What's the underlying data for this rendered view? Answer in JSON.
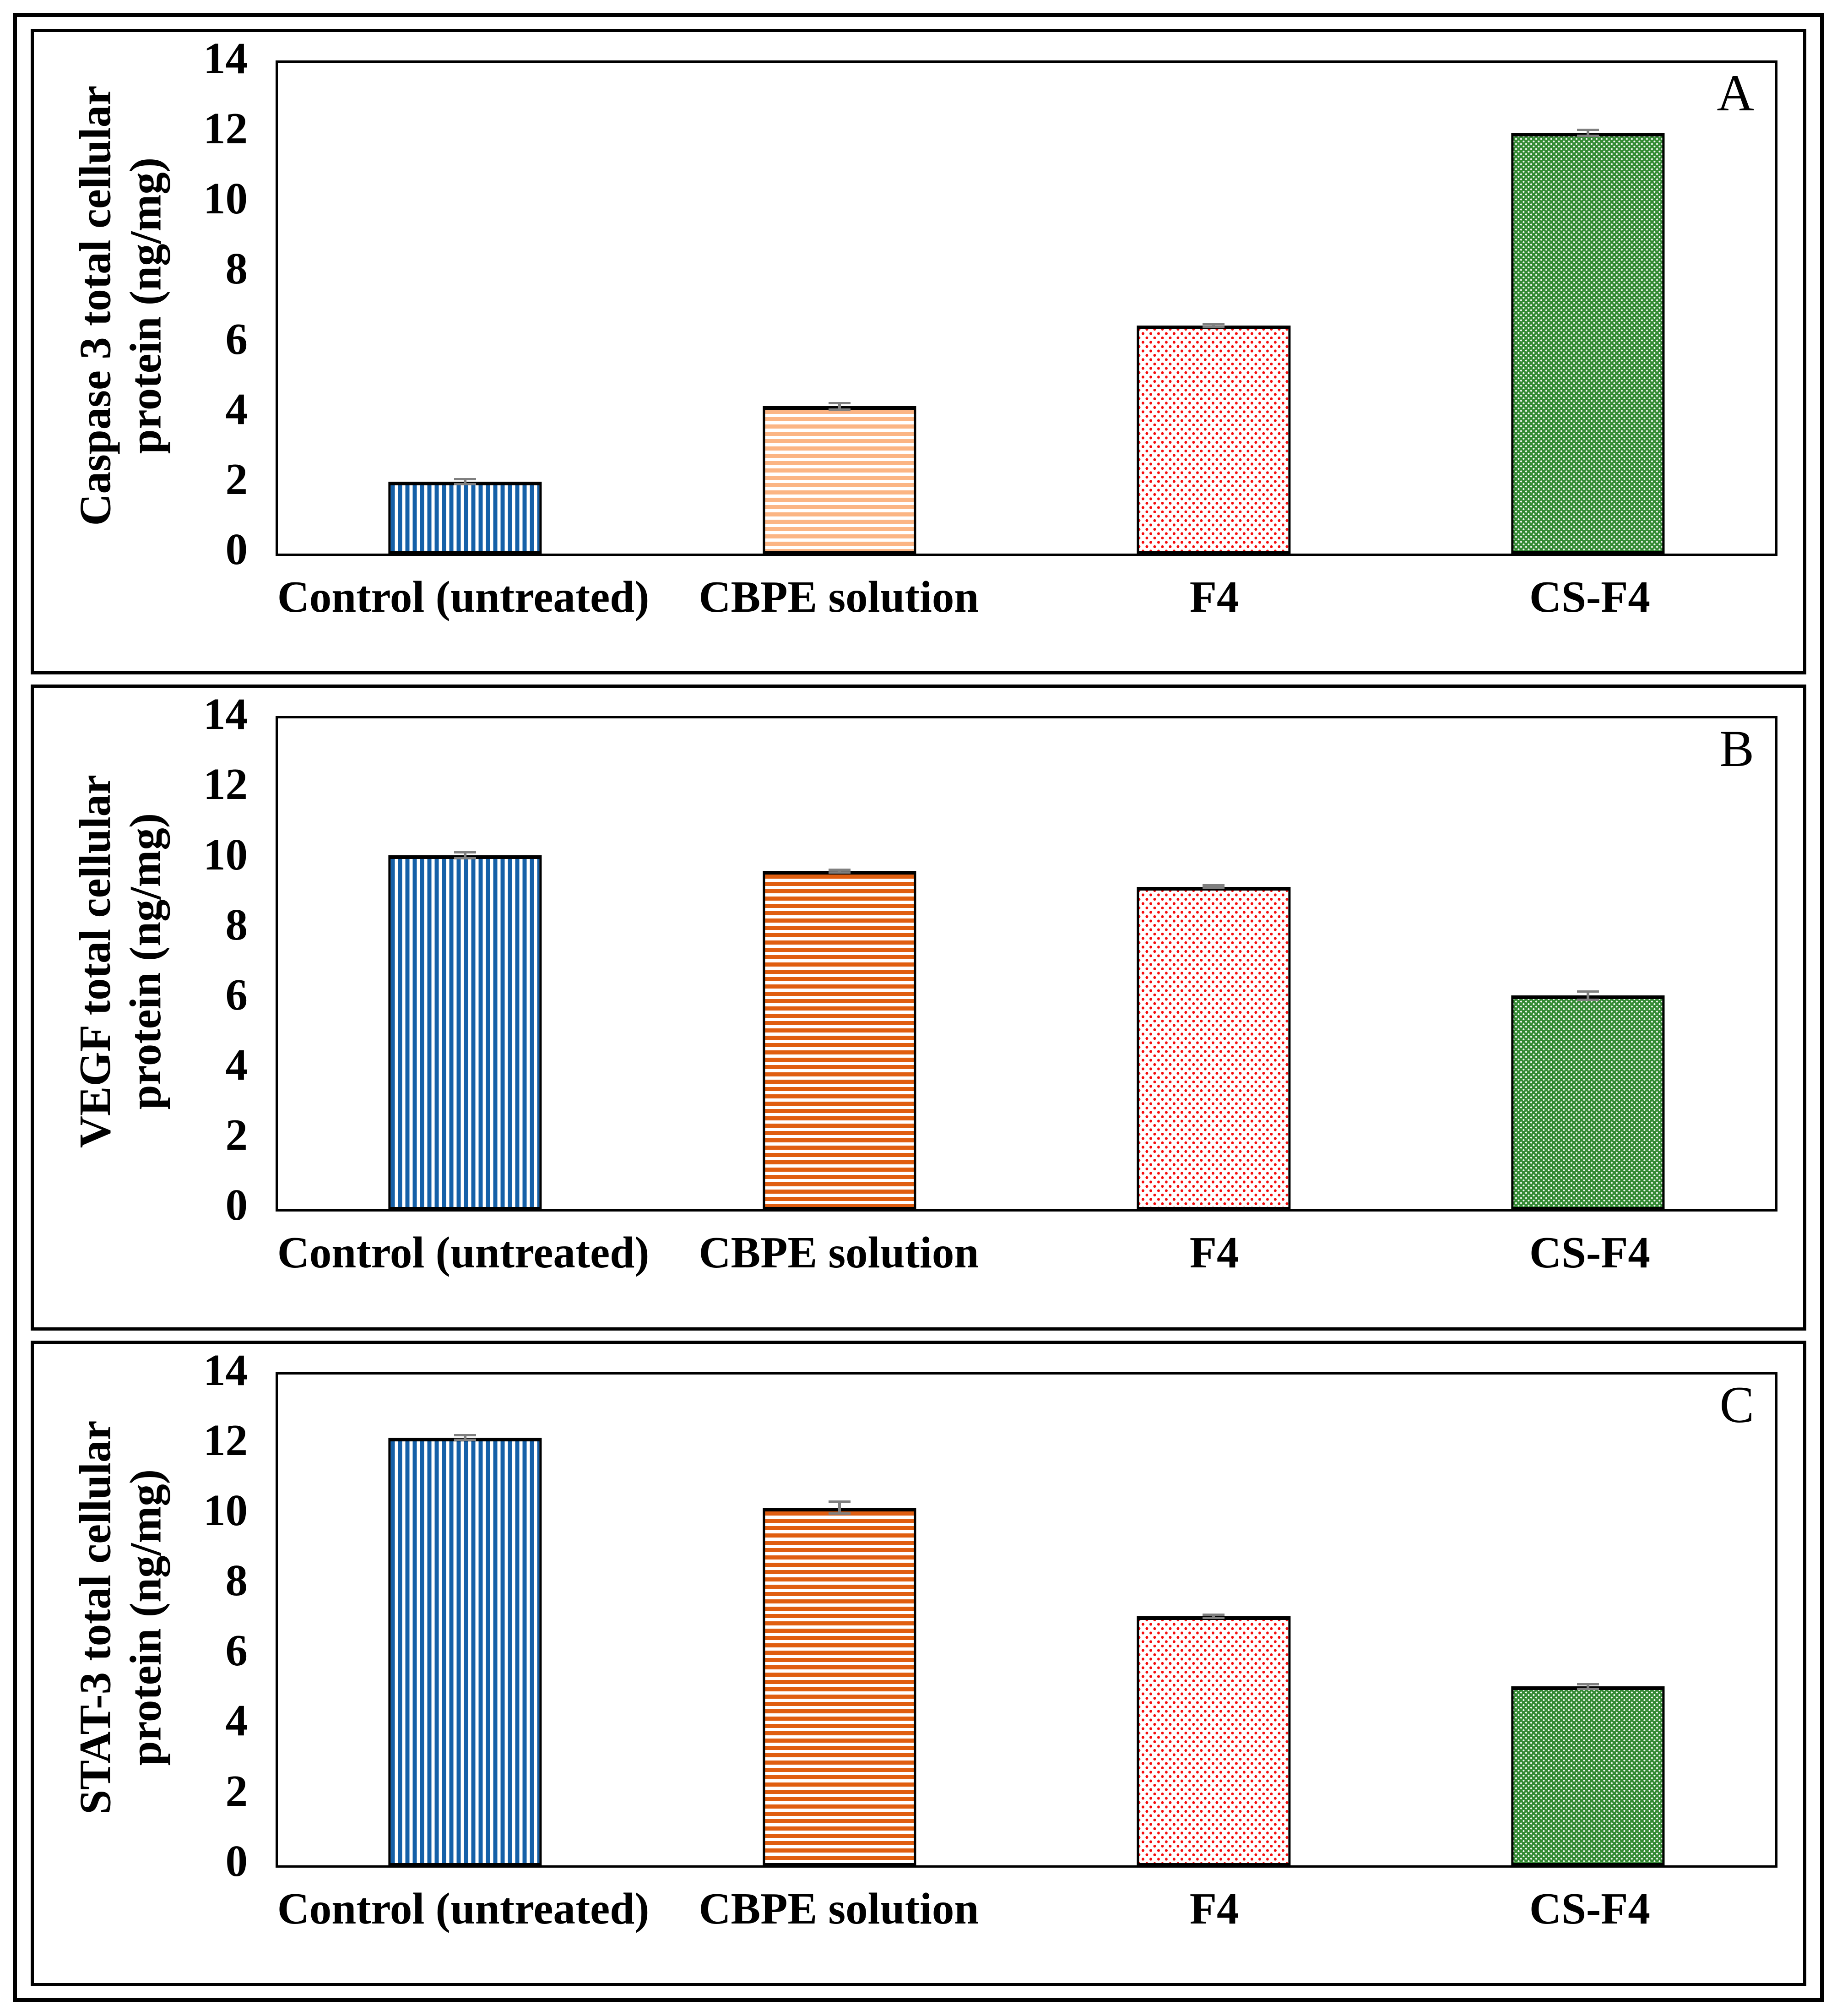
{
  "figure": {
    "background": "#ffffff",
    "frame_color": "#000000",
    "error_bar_color": "#7f7f7f",
    "axis_color": "#000000"
  },
  "chart_data": [
    {
      "type": "bar",
      "panel_label": "A",
      "title": "",
      "ylabel": "Caspase 3 total cellular protein (ng/mg)",
      "ylabel_lines": [
        "Caspase 3 total cellular",
        "protein (ng/mg)"
      ],
      "xlabel": "",
      "ylim": [
        0,
        14
      ],
      "yticks": [
        0,
        2,
        4,
        6,
        8,
        10,
        12,
        14
      ],
      "grid": false,
      "legend": false,
      "categories": [
        "Control (untreated)",
        "CBPE solution",
        "F4",
        "CS-F4"
      ],
      "values": [
        2.05,
        4.2,
        6.5,
        12.0
      ],
      "errors": [
        0.1,
        0.12,
        0.08,
        0.12
      ],
      "bars": [
        {
          "category": "Control (untreated)",
          "value": 2.05,
          "error": 0.1,
          "pattern": "vertical-stripes",
          "color": "#1560a8"
        },
        {
          "category": "CBPE solution",
          "value": 4.2,
          "error": 0.12,
          "pattern": "horizontal-stripes",
          "color": "#fbb584"
        },
        {
          "category": "F4",
          "value": 6.5,
          "error": 0.08,
          "pattern": "dots",
          "color": "#f60d0d"
        },
        {
          "category": "CS-F4",
          "value": 12.0,
          "error": 0.12,
          "pattern": "weave",
          "color": "#348a34"
        }
      ]
    },
    {
      "type": "bar",
      "panel_label": "B",
      "title": "",
      "ylabel": "VEGF total cellular protein (ng/mg)",
      "ylabel_lines": [
        "VEGF total cellular",
        "protein (ng/mg)"
      ],
      "xlabel": "",
      "ylim": [
        0,
        14
      ],
      "yticks": [
        0,
        2,
        4,
        6,
        8,
        10,
        12,
        14
      ],
      "grid": false,
      "legend": false,
      "categories": [
        "Control (untreated)",
        "CBPE solution",
        "F4",
        "CS-F4"
      ],
      "values": [
        10.1,
        9.65,
        9.2,
        6.1
      ],
      "errors": [
        0.12,
        0.07,
        0.06,
        0.15
      ],
      "bars": [
        {
          "category": "Control (untreated)",
          "value": 10.1,
          "error": 0.12,
          "pattern": "vertical-stripes",
          "color": "#1560a8"
        },
        {
          "category": "CBPE solution",
          "value": 9.65,
          "error": 0.07,
          "pattern": "horizontal-stripes",
          "color": "#e05e10"
        },
        {
          "category": "F4",
          "value": 9.2,
          "error": 0.06,
          "pattern": "dots",
          "color": "#f60d0d"
        },
        {
          "category": "CS-F4",
          "value": 6.1,
          "error": 0.15,
          "pattern": "weave",
          "color": "#348a34"
        }
      ]
    },
    {
      "type": "bar",
      "panel_label": "C",
      "title": "",
      "ylabel": "STAT-3 total cellular protein (ng/mg)",
      "ylabel_lines": [
        "STAT-3 total cellular",
        "protein (ng/mg)"
      ],
      "xlabel": "",
      "ylim": [
        0,
        14
      ],
      "yticks": [
        0,
        2,
        4,
        6,
        8,
        10,
        12,
        14
      ],
      "grid": false,
      "legend": false,
      "categories": [
        "Control (untreated)",
        "CBPE solution",
        "F4",
        "CS-F4"
      ],
      "values": [
        12.2,
        10.2,
        7.1,
        5.1
      ],
      "errors": [
        0.1,
        0.2,
        0.08,
        0.1
      ],
      "bars": [
        {
          "category": "Control (untreated)",
          "value": 12.2,
          "error": 0.1,
          "pattern": "vertical-stripes",
          "color": "#1560a8"
        },
        {
          "category": "CBPE solution",
          "value": 10.2,
          "error": 0.2,
          "pattern": "horizontal-stripes",
          "color": "#e05e10"
        },
        {
          "category": "F4",
          "value": 7.1,
          "error": 0.08,
          "pattern": "dots",
          "color": "#f60d0d"
        },
        {
          "category": "CS-F4",
          "value": 5.1,
          "error": 0.1,
          "pattern": "weave",
          "color": "#348a34"
        }
      ]
    }
  ]
}
